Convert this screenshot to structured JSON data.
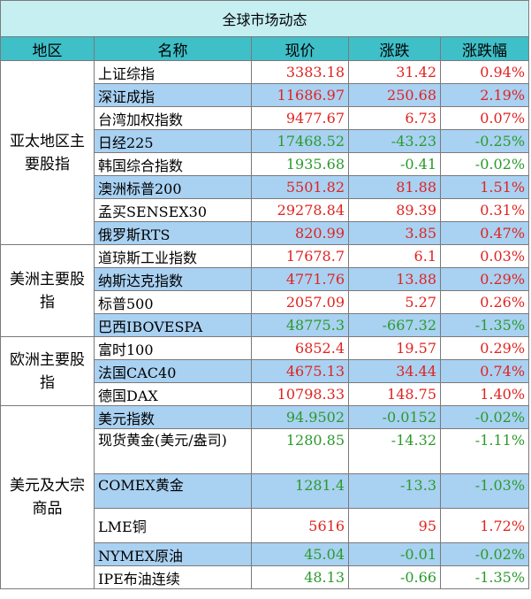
{
  "title": "全球市场动态",
  "headers": [
    "地区",
    "名称",
    "现价",
    "涨跌",
    "涨跌幅"
  ],
  "colors": {
    "up": "#e0231f",
    "down": "#2a9a2a",
    "header": "#3fbfc8",
    "title_bg": "#c6eff2",
    "highlight": "#a9d1f2"
  },
  "regions": {
    "asia": "亚太地区主要股指",
    "americas": "美洲主要股指",
    "europe": "欧洲主要股指",
    "commod": "美元及大宗商品"
  },
  "rows": [
    {
      "name": "上证综指",
      "price": "3383.18",
      "change": "31.42",
      "pct": "0.94%",
      "dir": "up"
    },
    {
      "name": "深证成指",
      "price": "11686.97",
      "change": "250.68",
      "pct": "2.19%",
      "dir": "up"
    },
    {
      "name": "台湾加权指数",
      "price": "9477.67",
      "change": "6.73",
      "pct": "0.07%",
      "dir": "up"
    },
    {
      "name": "日经225",
      "price": "17468.52",
      "change": "-43.23",
      "pct": "-0.25%",
      "dir": "down"
    },
    {
      "name": "韩国综合指数",
      "price": "1935.68",
      "change": "-0.41",
      "pct": "-0.02%",
      "dir": "down"
    },
    {
      "name": "澳洲标普200",
      "price": "5501.82",
      "change": "81.88",
      "pct": "1.51%",
      "dir": "up"
    },
    {
      "name": "孟买SENSEX30",
      "price": "29278.84",
      "change": "89.39",
      "pct": "0.31%",
      "dir": "up"
    },
    {
      "name": "俄罗斯RTS",
      "price": "820.99",
      "change": "3.85",
      "pct": "0.47%",
      "dir": "up"
    },
    {
      "name": "道琼斯工业指数",
      "price": "17678.7",
      "change": "6.1",
      "pct": "0.03%",
      "dir": "up"
    },
    {
      "name": "纳斯达克指数",
      "price": "4771.76",
      "change": "13.88",
      "pct": "0.29%",
      "dir": "up"
    },
    {
      "name": "标普500",
      "price": "2057.09",
      "change": "5.27",
      "pct": "0.26%",
      "dir": "up"
    },
    {
      "name": "巴西IBOVESPA",
      "price": "48775.3",
      "change": "-667.32",
      "pct": "-1.35%",
      "dir": "down"
    },
    {
      "name": "富时100",
      "price": "6852.4",
      "change": "19.57",
      "pct": "0.29%",
      "dir": "up"
    },
    {
      "name": "法国CAC40",
      "price": "4675.13",
      "change": "34.44",
      "pct": "0.74%",
      "dir": "up"
    },
    {
      "name": "德国DAX",
      "price": "10798.33",
      "change": "148.75",
      "pct": "1.40%",
      "dir": "up"
    },
    {
      "name": "美元指数",
      "price": "94.9502",
      "change": "-0.0152",
      "pct": "-0.02%",
      "dir": "down"
    },
    {
      "name": "现货黄金(美元/盎司)",
      "price": "1280.85",
      "change": "-14.32",
      "pct": "-1.11%",
      "dir": "down"
    },
    {
      "name": "COMEX黄金",
      "price": "1281.4",
      "change": "-13.3",
      "pct": "-1.03%",
      "dir": "down"
    },
    {
      "name": "LME铜",
      "price": "5616",
      "change": "95",
      "pct": "1.72%",
      "dir": "up"
    },
    {
      "name": "NYMEX原油",
      "price": "45.04",
      "change": "-0.01",
      "pct": "-0.02%",
      "dir": "down"
    },
    {
      "name": "IPE布油连续",
      "price": "48.13",
      "change": "-0.66",
      "pct": "-1.35%",
      "dir": "down"
    }
  ]
}
